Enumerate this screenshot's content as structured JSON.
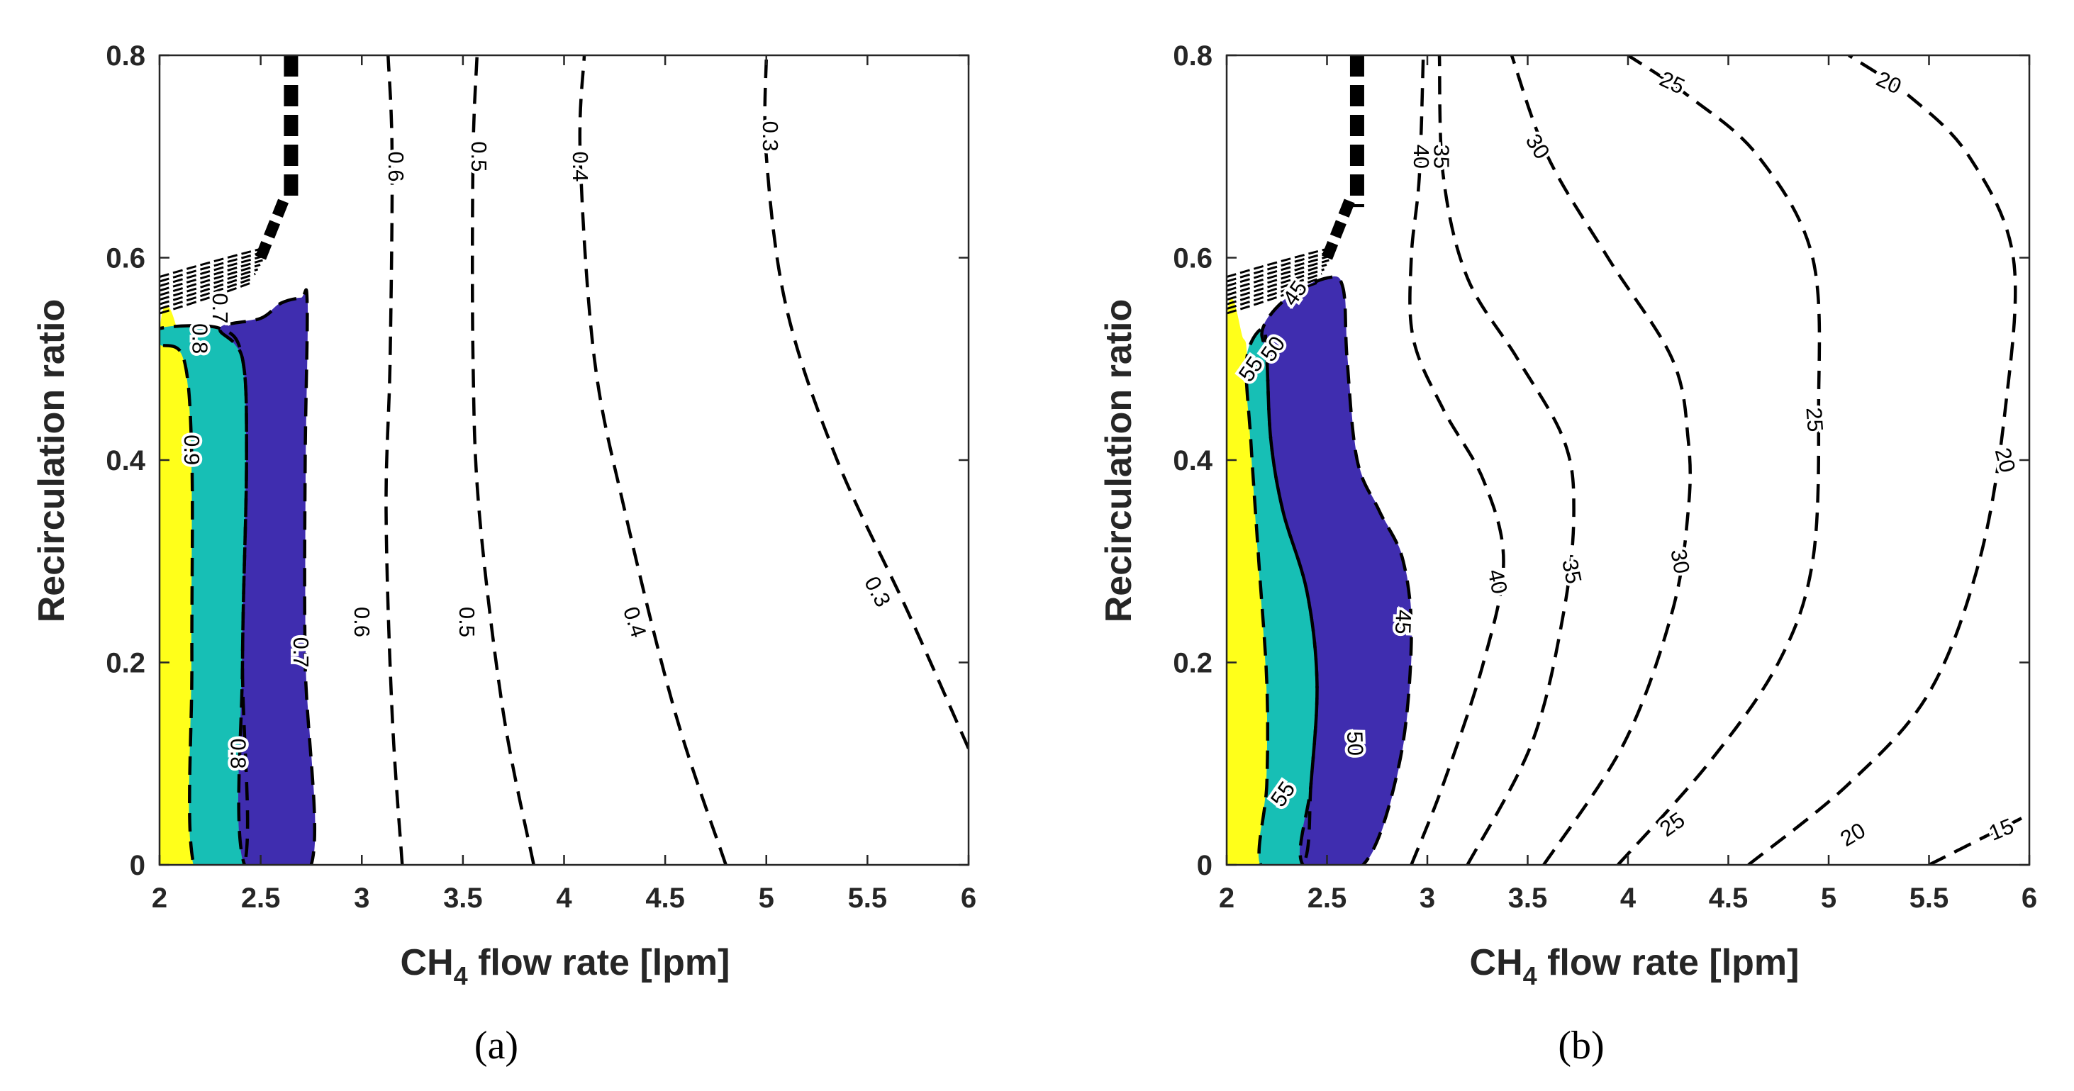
{
  "chart_data": [
    {
      "type": "contour",
      "panel_label": "(a)",
      "xlabel": {
        "prefix": "CH",
        "subscript": "4",
        "suffix": " flow rate [lpm]"
      },
      "ylabel": "Recirculation ratio",
      "xlim": [
        2,
        6
      ],
      "ylim": [
        0,
        0.8
      ],
      "xticks": [
        "2",
        "2.5",
        "3",
        "3.5",
        "4",
        "4.5",
        "5",
        "5.5",
        "6"
      ],
      "yticks": [
        "0",
        "0.2",
        "0.4",
        "0.6",
        "0.8"
      ],
      "filled_bands": [
        {
          "color": "#ffff1a",
          "boundary": [
            [
              2.0,
              0.0
            ],
            [
              2.17,
              0.0
            ],
            [
              2.16,
              0.2
            ],
            [
              2.16,
              0.4
            ],
            [
              2.12,
              0.5
            ],
            [
              2.0,
              0.515
            ]
          ]
        },
        {
          "color": "#17bfb5",
          "boundary": [
            [
              2.17,
              0.0
            ],
            [
              2.42,
              0.0
            ],
            [
              2.41,
              0.2
            ],
            [
              2.43,
              0.4
            ],
            [
              2.41,
              0.5
            ],
            [
              2.3,
              0.53
            ],
            [
              2.0,
              0.53
            ],
            [
              2.0,
              0.515
            ],
            [
              2.12,
              0.5
            ],
            [
              2.16,
              0.4
            ],
            [
              2.16,
              0.2
            ]
          ]
        },
        {
          "color": "#3f2daf",
          "boundary": [
            [
              2.42,
              0.0
            ],
            [
              2.75,
              0.0
            ],
            [
              2.72,
              0.2
            ],
            [
              2.72,
              0.4
            ],
            [
              2.73,
              0.555
            ],
            [
              2.7,
              0.56
            ],
            [
              2.6,
              0.555
            ],
            [
              2.5,
              0.54
            ],
            [
              2.3,
              0.53
            ],
            [
              2.41,
              0.5
            ],
            [
              2.43,
              0.4
            ],
            [
              2.41,
              0.2
            ]
          ]
        }
      ],
      "contours": [
        {
          "level": "0.6",
          "points": [
            [
              3.2,
              0.0
            ],
            [
              3.15,
              0.15
            ],
            [
              3.12,
              0.35
            ],
            [
              3.14,
              0.5
            ],
            [
              3.15,
              0.7
            ],
            [
              3.13,
              0.8
            ]
          ]
        },
        {
          "level": "0.5",
          "points": [
            [
              3.85,
              0.0
            ],
            [
              3.7,
              0.15
            ],
            [
              3.58,
              0.35
            ],
            [
              3.55,
              0.5
            ],
            [
              3.55,
              0.7
            ],
            [
              3.57,
              0.8
            ]
          ]
        },
        {
          "level": "0.4",
          "points": [
            [
              4.8,
              0.0
            ],
            [
              4.55,
              0.15
            ],
            [
              4.3,
              0.35
            ],
            [
              4.15,
              0.5
            ],
            [
              4.08,
              0.7
            ],
            [
              4.1,
              0.8
            ]
          ]
        },
        {
          "level": "0.3",
          "points": [
            [
              6.0,
              0.115
            ],
            [
              5.7,
              0.25
            ],
            [
              5.35,
              0.4
            ],
            [
              5.1,
              0.55
            ],
            [
              5.0,
              0.7
            ],
            [
              5.0,
              0.8
            ]
          ]
        }
      ],
      "contour_labels": [
        {
          "text": "0.6",
          "x": 3.17,
          "y": 0.69,
          "angle": 90
        },
        {
          "text": "0.5",
          "x": 3.58,
          "y": 0.7,
          "angle": 90
        },
        {
          "text": "0.4",
          "x": 4.08,
          "y": 0.69,
          "angle": 90
        },
        {
          "text": "0.3",
          "x": 5.02,
          "y": 0.72,
          "angle": 90
        },
        {
          "text": "0.6",
          "x": 3.0,
          "y": 0.24,
          "angle": 90
        },
        {
          "text": "0.5",
          "x": 3.52,
          "y": 0.24,
          "angle": 90
        },
        {
          "text": "0.4",
          "x": 4.35,
          "y": 0.24,
          "angle": 72
        },
        {
          "text": "0.3",
          "x": 5.55,
          "y": 0.27,
          "angle": 62
        },
        {
          "text": "0.7",
          "x": 2.7,
          "y": 0.21,
          "angle": 90
        },
        {
          "text": "0.8",
          "x": 2.39,
          "y": 0.11,
          "angle": 90
        },
        {
          "text": "0.9",
          "x": 2.16,
          "y": 0.41,
          "angle": 90
        },
        {
          "text": "0.8",
          "x": 2.2,
          "y": 0.52,
          "angle": 90
        },
        {
          "text": "0.7",
          "x": 2.3,
          "y": 0.55,
          "angle": 90
        }
      ],
      "spike": [
        [
          2.65,
          0.8
        ],
        [
          2.65,
          0.66
        ]
      ]
    },
    {
      "type": "contour",
      "panel_label": "(b)",
      "xlabel": {
        "prefix": "CH",
        "subscript": "4",
        "suffix": " flow rate [lpm]"
      },
      "ylabel": "Recirculation ratio",
      "xlim": [
        2,
        6
      ],
      "ylim": [
        0,
        0.8
      ],
      "xticks": [
        "2",
        "2.5",
        "3",
        "3.5",
        "4",
        "4.5",
        "5",
        "5.5",
        "6"
      ],
      "yticks": [
        "0",
        "0.2",
        "0.4",
        "0.6",
        "0.8"
      ],
      "filled_bands": [
        {
          "color": "#ffff1a",
          "boundary": [
            [
              2.0,
              0.0
            ],
            [
              2.17,
              0.0
            ],
            [
              2.2,
              0.08
            ],
            [
              2.2,
              0.18
            ],
            [
              2.16,
              0.3
            ],
            [
              2.12,
              0.42
            ],
            [
              2.1,
              0.5
            ],
            [
              2.08,
              0.52
            ],
            [
              2.0,
              0.52
            ]
          ]
        },
        {
          "color": "#17bfb5",
          "boundary": [
            [
              2.17,
              0.0
            ],
            [
              2.38,
              0.0
            ],
            [
              2.42,
              0.08
            ],
            [
              2.45,
              0.18
            ],
            [
              2.4,
              0.27
            ],
            [
              2.28,
              0.35
            ],
            [
              2.22,
              0.42
            ],
            [
              2.2,
              0.5
            ],
            [
              2.18,
              0.53
            ],
            [
              2.1,
              0.5
            ],
            [
              2.12,
              0.42
            ],
            [
              2.16,
              0.3
            ],
            [
              2.2,
              0.18
            ],
            [
              2.2,
              0.08
            ]
          ]
        },
        {
          "color": "#3f2daf",
          "boundary": [
            [
              2.38,
              0.0
            ],
            [
              2.68,
              0.0
            ],
            [
              2.86,
              0.1
            ],
            [
              2.92,
              0.22
            ],
            [
              2.88,
              0.3
            ],
            [
              2.76,
              0.35
            ],
            [
              2.65,
              0.4
            ],
            [
              2.6,
              0.5
            ],
            [
              2.58,
              0.57
            ],
            [
              2.5,
              0.58
            ],
            [
              2.3,
              0.56
            ],
            [
              2.18,
              0.53
            ],
            [
              2.2,
              0.5
            ],
            [
              2.22,
              0.42
            ],
            [
              2.28,
              0.35
            ],
            [
              2.4,
              0.27
            ],
            [
              2.45,
              0.18
            ],
            [
              2.42,
              0.08
            ]
          ]
        }
      ],
      "contours": [
        {
          "level": "40",
          "points": [
            [
              2.92,
              0.0
            ],
            [
              3.08,
              0.08
            ],
            [
              3.28,
              0.2
            ],
            [
              3.38,
              0.3
            ],
            [
              3.28,
              0.38
            ],
            [
              3.08,
              0.45
            ],
            [
              2.93,
              0.52
            ],
            [
              2.92,
              0.6
            ],
            [
              2.96,
              0.68
            ],
            [
              2.98,
              0.8
            ]
          ]
        },
        {
          "level": "35",
          "points": [
            [
              3.2,
              0.0
            ],
            [
              3.52,
              0.12
            ],
            [
              3.68,
              0.25
            ],
            [
              3.73,
              0.35
            ],
            [
              3.68,
              0.42
            ],
            [
              3.45,
              0.5
            ],
            [
              3.2,
              0.58
            ],
            [
              3.08,
              0.68
            ],
            [
              3.06,
              0.8
            ]
          ]
        },
        {
          "level": "30",
          "points": [
            [
              3.58,
              0.0
            ],
            [
              3.98,
              0.12
            ],
            [
              4.22,
              0.25
            ],
            [
              4.3,
              0.35
            ],
            [
              4.3,
              0.42
            ],
            [
              4.22,
              0.5
            ],
            [
              3.9,
              0.6
            ],
            [
              3.6,
              0.7
            ],
            [
              3.42,
              0.8
            ]
          ]
        },
        {
          "level": "25",
          "points": [
            [
              3.95,
              0.0
            ],
            [
              4.4,
              0.1
            ],
            [
              4.75,
              0.2
            ],
            [
              4.92,
              0.3
            ],
            [
              4.95,
              0.45
            ],
            [
              4.92,
              0.6
            ],
            [
              4.65,
              0.7
            ],
            [
              4.3,
              0.76
            ],
            [
              4.0,
              0.8
            ]
          ]
        },
        {
          "level": "20",
          "points": [
            [
              4.6,
              0.0
            ],
            [
              5.1,
              0.08
            ],
            [
              5.5,
              0.17
            ],
            [
              5.75,
              0.3
            ],
            [
              5.88,
              0.45
            ],
            [
              5.92,
              0.6
            ],
            [
              5.7,
              0.7
            ],
            [
              5.4,
              0.76
            ],
            [
              5.1,
              0.8
            ]
          ]
        },
        {
          "level": "15",
          "points": [
            [
              5.5,
              0.0
            ],
            [
              5.8,
              0.03
            ],
            [
              6.0,
              0.05
            ]
          ]
        }
      ],
      "contour_labels": [
        {
          "text": "40",
          "x": 2.97,
          "y": 0.7,
          "angle": 90
        },
        {
          "text": "35",
          "x": 3.07,
          "y": 0.7,
          "angle": 90
        },
        {
          "text": "30",
          "x": 3.55,
          "y": 0.71,
          "angle": 58
        },
        {
          "text": "25",
          "x": 4.22,
          "y": 0.773,
          "angle": 25
        },
        {
          "text": "20",
          "x": 5.3,
          "y": 0.773,
          "angle": 25
        },
        {
          "text": "40",
          "x": 3.35,
          "y": 0.28,
          "angle": 78
        },
        {
          "text": "35",
          "x": 3.72,
          "y": 0.29,
          "angle": 78
        },
        {
          "text": "30",
          "x": 4.26,
          "y": 0.3,
          "angle": 80
        },
        {
          "text": "25",
          "x": 4.93,
          "y": 0.44,
          "angle": 86
        },
        {
          "text": "20",
          "x": 5.88,
          "y": 0.4,
          "angle": 75
        },
        {
          "text": "25",
          "x": 4.22,
          "y": 0.04,
          "angle": -35
        },
        {
          "text": "20",
          "x": 5.12,
          "y": 0.03,
          "angle": -30
        },
        {
          "text": "15",
          "x": 5.86,
          "y": 0.035,
          "angle": -22
        },
        {
          "text": "45",
          "x": 2.88,
          "y": 0.24,
          "angle": 92
        },
        {
          "text": "50",
          "x": 2.64,
          "y": 0.12,
          "angle": 88
        },
        {
          "text": "55",
          "x": 2.28,
          "y": 0.07,
          "angle": -55
        },
        {
          "text": "55",
          "x": 2.12,
          "y": 0.49,
          "angle": -55
        },
        {
          "text": "50",
          "x": 2.23,
          "y": 0.51,
          "angle": -55
        },
        {
          "text": "45",
          "x": 2.34,
          "y": 0.565,
          "angle": -55
        }
      ],
      "spike": [
        [
          2.65,
          0.8
        ],
        [
          2.65,
          0.65
        ]
      ]
    }
  ]
}
